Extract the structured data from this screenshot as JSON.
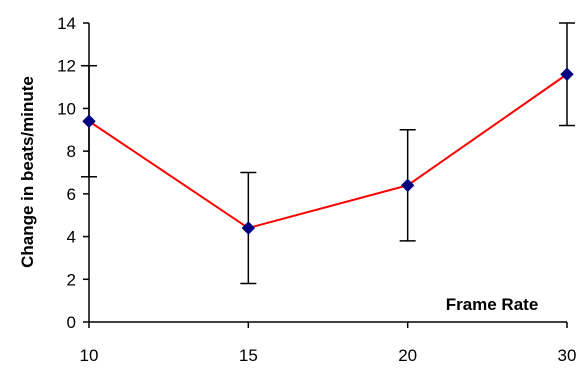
{
  "chart_data": {
    "type": "line",
    "title": "",
    "xlabel": "Frame Rate",
    "ylabel": "Change in beats/minute",
    "categories": [
      "10",
      "15",
      "20",
      "30"
    ],
    "series": [
      {
        "values": [
          9.4,
          4.4,
          6.4,
          11.6
        ],
        "error_low": [
          6.8,
          1.8,
          3.8,
          9.2
        ],
        "error_high": [
          12.0,
          7.0,
          9.0,
          14.0
        ],
        "line_color": "#ff0000",
        "marker_color": "#000080",
        "marker": "diamond"
      }
    ],
    "ylim": [
      0,
      14
    ],
    "yticks": [
      0,
      2,
      4,
      6,
      8,
      10,
      12,
      14
    ],
    "grid": false,
    "legend": "none"
  }
}
